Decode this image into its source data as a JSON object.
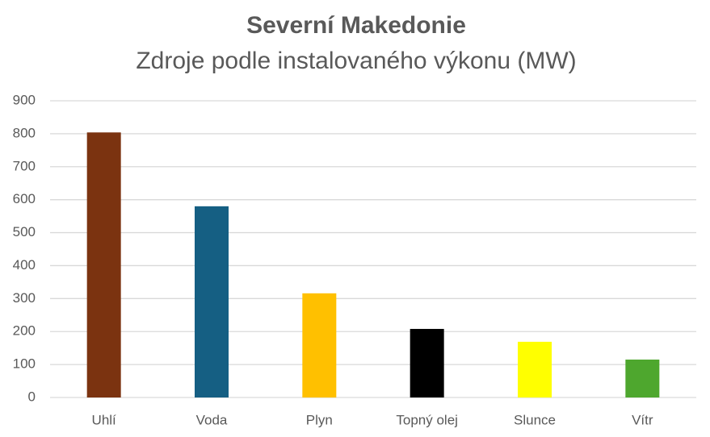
{
  "chart_data": {
    "type": "bar",
    "title": "Severní Makedonie",
    "subtitle": "Zdroje podle instalovaného výkonu (MW)",
    "categories": [
      "Uhlí",
      "Voda",
      "Plyn",
      "Topný olej",
      "Slunce",
      "Vítr"
    ],
    "values": [
      804,
      580,
      316,
      208,
      169,
      115
    ],
    "colors": [
      "#7b3310",
      "#155f83",
      "#ffc000",
      "#000000",
      "#ffff00",
      "#4ea72e"
    ],
    "ylim": [
      0,
      900
    ],
    "yticks": [
      0,
      100,
      200,
      300,
      400,
      500,
      600,
      700,
      800,
      900
    ],
    "grid": true
  }
}
